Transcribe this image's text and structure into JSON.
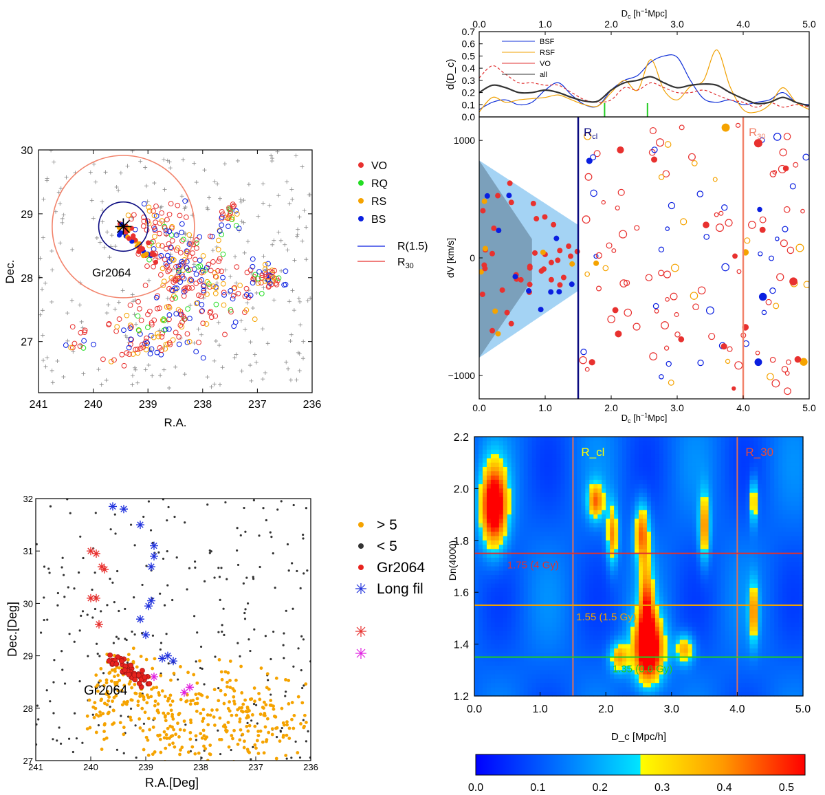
{
  "colors": {
    "vo": "#e8312f",
    "rq": "#22dd22",
    "rs": "#f5a300",
    "bs": "#0a1fe0",
    "rcl_line": "#0a0a80",
    "r30_line": "#f2836b",
    "gr_red": "#e8231e",
    "gt5": "#f5a300",
    "lt5": "#333333",
    "long_fil": "#2233dd",
    "fil_red": "#e8312f",
    "fil_mag": "#e020e0"
  },
  "chart_data": [
    {
      "type": "scatter",
      "panel": "sky-map-top-left",
      "xlabel": "R.A.",
      "ylabel": "Dec.",
      "xlim": [
        241,
        236
      ],
      "ylim": [
        26.2,
        30
      ],
      "xticks": [
        "241",
        "240",
        "239",
        "238",
        "237",
        "236"
      ],
      "yticks": [
        "27",
        "28",
        "29",
        "30"
      ],
      "legend": [
        "VO",
        "RQ",
        "RS",
        "BS"
      ],
      "line_legend": [
        "R(1.5)",
        "R"
      ],
      "line_legend_sub": "30",
      "group_label": "Gr2064",
      "group_center": [
        239.45,
        28.8
      ],
      "circle_radii_deg": {
        "R(1.5)": 0.45,
        "R30": 1.3
      }
    },
    {
      "type": "line",
      "panel": "density-profile-top-right",
      "xlabel": "D",
      "xlabel_sub": "c",
      "xlabel_unit": " [h",
      "xlabel_sup": "−1",
      "xlabel_tail": "Mpc]",
      "ylabel": "d(D_c)",
      "xlim": [
        0,
        5
      ],
      "ylim": [
        0,
        0.7
      ],
      "xticks": [
        "0.0",
        "1.0",
        "2.0",
        "3.0",
        "4.0",
        "5.0"
      ],
      "yticks": [
        "0.0",
        "0.1",
        "0.2",
        "0.3",
        "0.4",
        "0.5",
        "0.6",
        "0.7"
      ],
      "series": [
        {
          "name": "BSF",
          "color": "#1030d8",
          "x": [
            0,
            0.2,
            0.4,
            0.6,
            0.8,
            1.0,
            1.2,
            1.4,
            1.6,
            1.8,
            2.0,
            2.2,
            2.4,
            2.6,
            2.8,
            3.0,
            3.2,
            3.4,
            3.6,
            3.8,
            4.0,
            4.2,
            4.4,
            4.6,
            4.8,
            5.0
          ],
          "y": [
            0.06,
            0.12,
            0.14,
            0.1,
            0.12,
            0.22,
            0.28,
            0.18,
            0.1,
            0.09,
            0.22,
            0.3,
            0.34,
            0.45,
            0.5,
            0.49,
            0.3,
            0.15,
            0.12,
            0.14,
            0.1,
            0.12,
            0.14,
            0.2,
            0.12,
            0.1
          ]
        },
        {
          "name": "RSF",
          "color": "#f0a000",
          "x": [
            0,
            0.2,
            0.4,
            0.6,
            0.8,
            1.0,
            1.2,
            1.4,
            1.6,
            1.8,
            2.0,
            2.2,
            2.4,
            2.6,
            2.8,
            3.0,
            3.2,
            3.4,
            3.6,
            3.8,
            4.0,
            4.2,
            4.4,
            4.6,
            4.8,
            5.0
          ],
          "y": [
            0.04,
            0.16,
            0.12,
            0.14,
            0.15,
            0.16,
            0.18,
            0.14,
            0.1,
            0.09,
            0.2,
            0.3,
            0.22,
            0.47,
            0.22,
            0.14,
            0.25,
            0.3,
            0.55,
            0.25,
            0.06,
            0.04,
            0.1,
            0.24,
            0.12,
            0.06
          ]
        },
        {
          "name": "VO",
          "color": "#e03030",
          "dashed": true,
          "x": [
            0,
            0.2,
            0.4,
            0.6,
            0.8,
            1.0,
            1.2,
            1.4,
            1.6,
            1.8,
            2.0,
            2.2,
            2.4,
            2.6,
            2.8,
            3.0,
            3.2,
            3.4,
            3.6,
            3.8,
            4.0,
            4.2,
            4.4,
            4.6,
            4.8,
            5.0
          ],
          "y": [
            0.32,
            0.42,
            0.35,
            0.28,
            0.28,
            0.26,
            0.26,
            0.2,
            0.14,
            0.12,
            0.14,
            0.24,
            0.22,
            0.28,
            0.24,
            0.2,
            0.2,
            0.22,
            0.18,
            0.14,
            0.12,
            0.08,
            0.12,
            0.08,
            0.1,
            0.08
          ]
        },
        {
          "name": "all",
          "color": "#333333",
          "x": [
            0,
            0.2,
            0.4,
            0.6,
            0.8,
            1.0,
            1.2,
            1.4,
            1.6,
            1.8,
            2.0,
            2.2,
            2.4,
            2.6,
            2.8,
            3.0,
            3.2,
            3.4,
            3.6,
            3.8,
            4.0,
            4.2,
            4.4,
            4.6,
            4.8,
            5.0
          ],
          "y": [
            0.2,
            0.26,
            0.24,
            0.2,
            0.2,
            0.22,
            0.2,
            0.16,
            0.13,
            0.13,
            0.22,
            0.28,
            0.3,
            0.33,
            0.28,
            0.24,
            0.26,
            0.27,
            0.26,
            0.2,
            0.15,
            0.11,
            0.12,
            0.16,
            0.12,
            0.09
          ]
        }
      ],
      "markers_x": [
        1.9,
        2.55
      ]
    },
    {
      "type": "scatter",
      "panel": "phase-space-right",
      "xlabel": "D",
      "xlabel_sub": "c",
      "xlabel_unit": " [h",
      "xlabel_sup": "−1",
      "xlabel_tail": "Mpc]",
      "ylabel": "dV [km/s]",
      "xlim": [
        0,
        5
      ],
      "ylim": [
        -1200,
        1200
      ],
      "xticks": [
        "0.0",
        "1.0",
        "2.0",
        "3.0",
        "4.0",
        "5.0"
      ],
      "yticks": [
        "1000",
        "0",
        "−1000"
      ],
      "vlines": [
        {
          "x": 1.5,
          "label": "R",
          "sub": "cl"
        },
        {
          "x": 4.0,
          "label": "R",
          "sub": "30"
        }
      ]
    },
    {
      "type": "scatter",
      "panel": "sky-map-bottom-left",
      "xlabel": "R.A.[Deg]",
      "ylabel": "Dec.[Deg]",
      "xlim": [
        241,
        236
      ],
      "ylim": [
        27,
        32
      ],
      "xticks": [
        "241",
        "240",
        "239",
        "238",
        "237",
        "236"
      ],
      "yticks": [
        "27",
        "28",
        "29",
        "30",
        "31",
        "32"
      ],
      "legend": [
        "> 5",
        "< 5",
        "Gr2064",
        "Long fil"
      ],
      "group_label": "Gr2064"
    },
    {
      "type": "heatmap",
      "panel": "dn4000-map-bottom-right",
      "xlabel": "D_c [Mpc/h]",
      "ylabel": "Dn(4000)",
      "xlim": [
        0,
        5
      ],
      "ylim": [
        1.2,
        2.2
      ],
      "xticks": [
        "0.0",
        "1.0",
        "2.0",
        "3.0",
        "4.0",
        "5.0"
      ],
      "yticks": [
        "1.2",
        "1.4",
        "1.6",
        "1.8",
        "2.0",
        "2.2"
      ],
      "vlines": [
        {
          "x": 1.5,
          "label": "R_cl"
        },
        {
          "x": 4.0,
          "label": "R_30"
        }
      ],
      "hlines": [
        {
          "y": 1.75,
          "label": "1.75 (4 Gy)",
          "color": "#e03030"
        },
        {
          "y": 1.55,
          "label": "1.55 (1.5 Gy)",
          "color": "#f0a000"
        },
        {
          "y": 1.35,
          "label": "1.35 (0.6 Gy)",
          "color": "#22cc22"
        }
      ],
      "blobs": [
        {
          "x": 0.3,
          "y": 1.93,
          "sx": 0.14,
          "sy": 0.11,
          "a": 0.52
        },
        {
          "x": 2.65,
          "y": 1.38,
          "sx": 0.16,
          "sy": 0.09,
          "a": 0.55
        },
        {
          "x": 2.62,
          "y": 1.55,
          "sx": 0.08,
          "sy": 0.12,
          "a": 0.3
        },
        {
          "x": 2.55,
          "y": 1.83,
          "sx": 0.08,
          "sy": 0.08,
          "a": 0.32
        },
        {
          "x": 1.85,
          "y": 1.95,
          "sx": 0.09,
          "sy": 0.05,
          "a": 0.3
        },
        {
          "x": 2.1,
          "y": 1.82,
          "sx": 0.06,
          "sy": 0.08,
          "a": 0.3
        },
        {
          "x": 3.5,
          "y": 1.85,
          "sx": 0.06,
          "sy": 0.09,
          "a": 0.3
        },
        {
          "x": 4.25,
          "y": 1.52,
          "sx": 0.05,
          "sy": 0.08,
          "a": 0.28
        },
        {
          "x": 4.25,
          "y": 1.95,
          "sx": 0.04,
          "sy": 0.06,
          "a": 0.28
        },
        {
          "x": 2.2,
          "y": 1.35,
          "sx": 0.1,
          "sy": 0.04,
          "a": 0.27
        },
        {
          "x": 3.2,
          "y": 1.38,
          "sx": 0.1,
          "sy": 0.04,
          "a": 0.27
        }
      ],
      "colorbar": {
        "min": 0.0,
        "max": 0.53,
        "ticks": [
          "0.0",
          "0.1",
          "0.2",
          "0.3",
          "0.4",
          "0.5"
        ]
      }
    }
  ]
}
